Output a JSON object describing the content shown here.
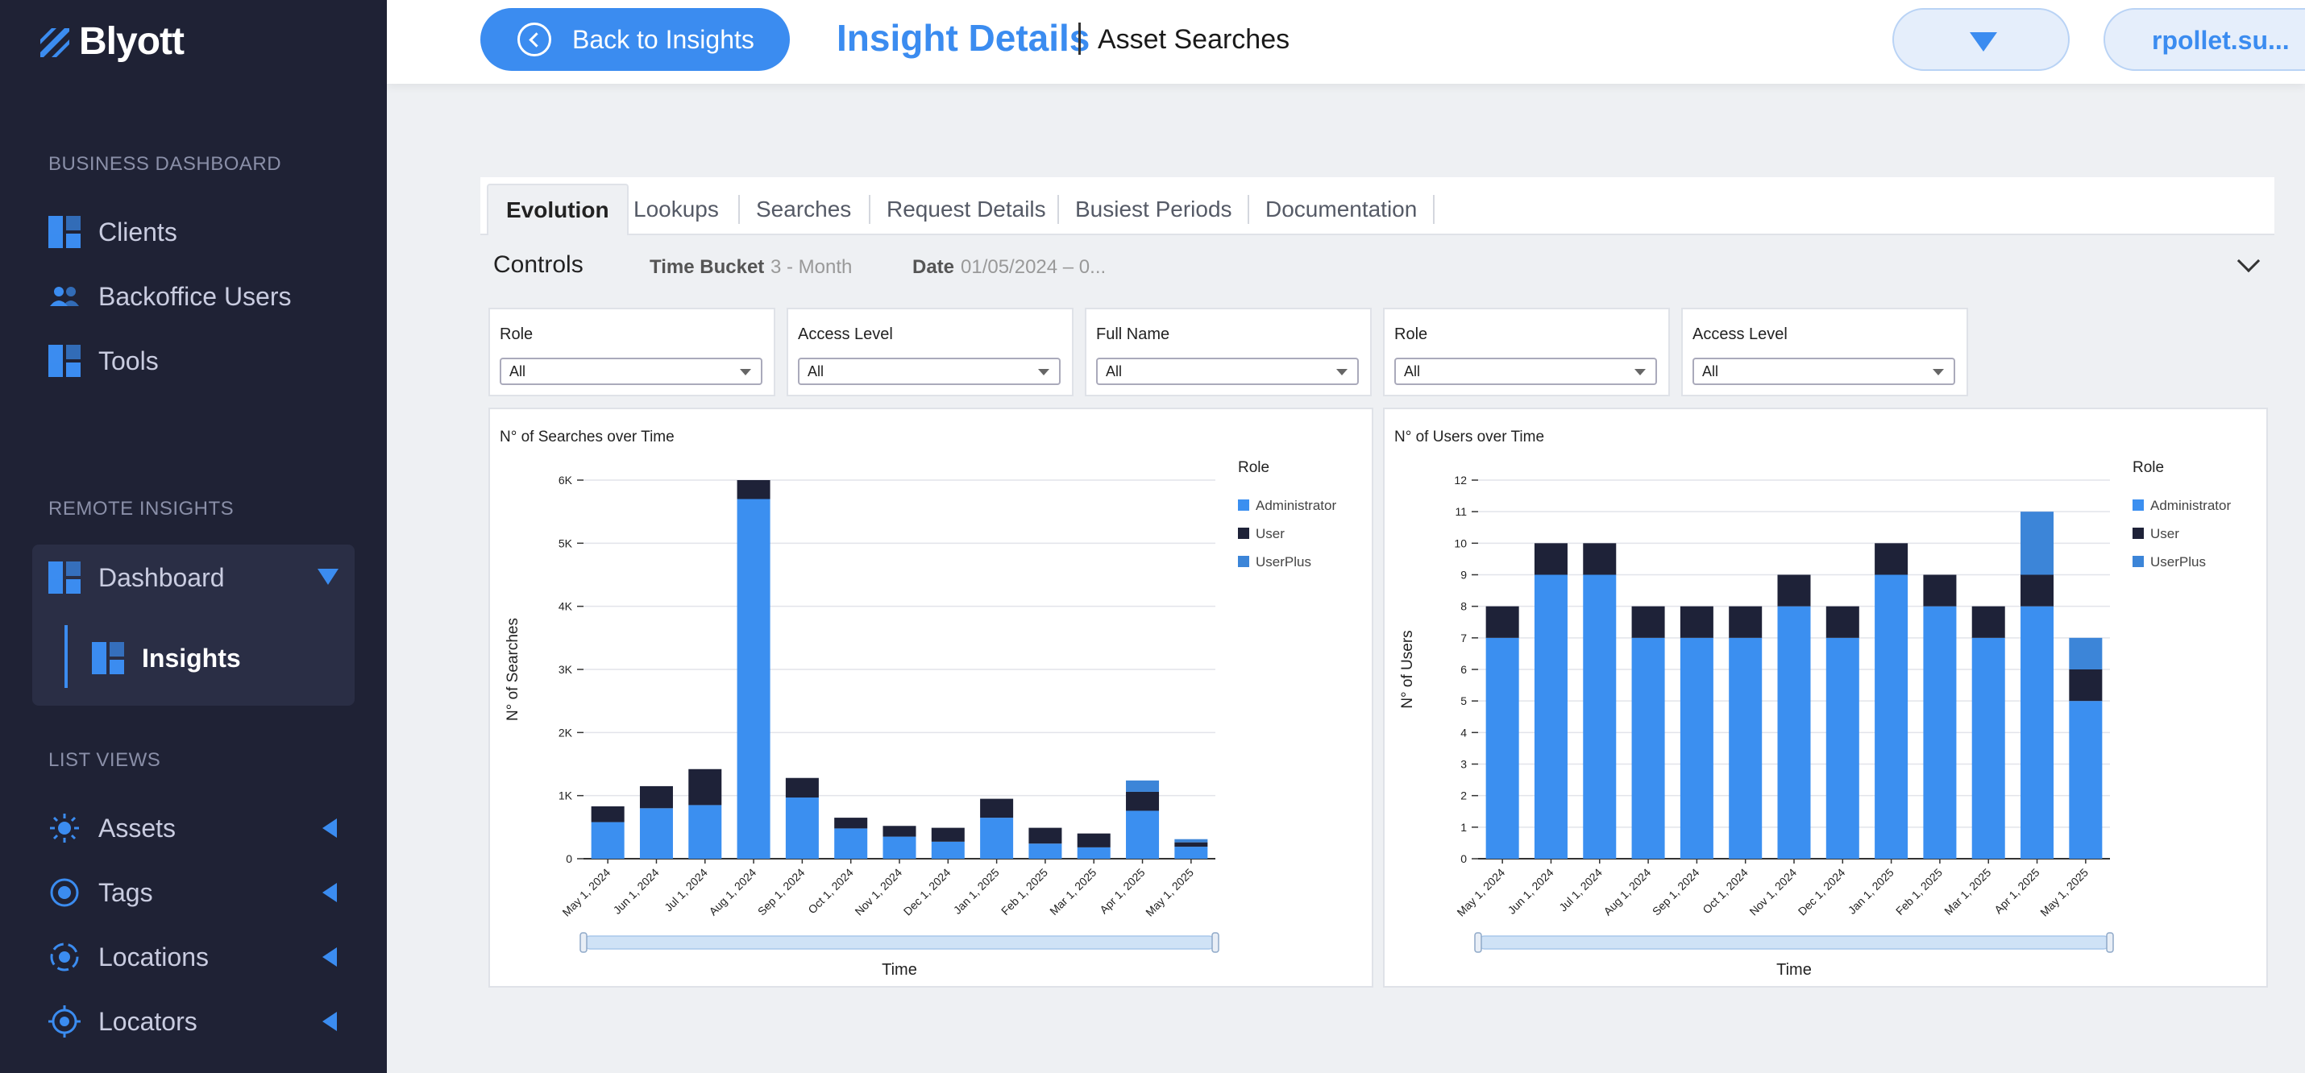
{
  "app": {
    "name": "Blyott"
  },
  "sidebar": {
    "sections": [
      {
        "title": "BUSINESS DASHBOARD",
        "items": [
          {
            "label": "Clients"
          },
          {
            "label": "Backoffice Users"
          },
          {
            "label": "Tools"
          }
        ]
      },
      {
        "title": "REMOTE INSIGHTS",
        "items": [
          {
            "label": "Dashboard"
          },
          {
            "label": "Insights"
          }
        ]
      },
      {
        "title": "LIST VIEWS",
        "items": [
          {
            "label": "Assets"
          },
          {
            "label": "Tags"
          },
          {
            "label": "Locations"
          },
          {
            "label": "Locators"
          }
        ]
      }
    ]
  },
  "header": {
    "back_label": "Back to Insights",
    "title": "Insight Details",
    "subtitle": "Asset Searches",
    "user": "rpollet.su..."
  },
  "tabs": [
    "Evolution",
    "Lookups",
    "Searches",
    "Request Details",
    "Busiest Periods",
    "Documentation"
  ],
  "controls": {
    "title": "Controls",
    "time_bucket_label": "Time Bucket",
    "time_bucket_value": "3 - Month",
    "date_label": "Date",
    "date_value": "01/05/2024 – 0..."
  },
  "filters": [
    {
      "label": "Role",
      "value": "All"
    },
    {
      "label": "Access Level",
      "value": "All"
    },
    {
      "label": "Full Name",
      "value": "All"
    },
    {
      "label": "Role",
      "value": "All"
    },
    {
      "label": "Access Level",
      "value": "All"
    }
  ],
  "colors": {
    "administrator": "#3b8ff0",
    "user": "#1e2238",
    "userplus": "#3c85d8",
    "accent": "#3b8cf0",
    "sidebar": "#1f2235"
  },
  "chart_data": [
    {
      "type": "bar",
      "stacked": true,
      "title": "N° of Searches over Time",
      "xlabel": "Time",
      "ylabel": "N° of Searches",
      "legend_title": "Role",
      "legend_position": "right",
      "ylim": [
        0,
        6000
      ],
      "yticks": [
        0,
        1000,
        2000,
        3000,
        4000,
        5000,
        6000
      ],
      "ytick_labels": [
        "0",
        "1K",
        "2K",
        "3K",
        "4K",
        "5K",
        "6K"
      ],
      "categories": [
        "May 1, 2024",
        "Jun 1, 2024",
        "Jul 1, 2024",
        "Aug 1, 2024",
        "Sep 1, 2024",
        "Oct 1, 2024",
        "Nov 1, 2024",
        "Dec 1, 2024",
        "Jan 1, 2025",
        "Feb 1, 2025",
        "Mar 1, 2025",
        "Apr 1, 2025",
        "May 1, 2025"
      ],
      "series": [
        {
          "name": "Administrator",
          "values": [
            580,
            800,
            850,
            5700,
            970,
            480,
            350,
            270,
            650,
            240,
            180,
            760,
            190
          ]
        },
        {
          "name": "User",
          "values": [
            250,
            350,
            570,
            300,
            310,
            170,
            170,
            220,
            300,
            250,
            220,
            300,
            70
          ]
        },
        {
          "name": "UserPlus",
          "values": [
            0,
            0,
            0,
            0,
            0,
            0,
            0,
            0,
            0,
            0,
            0,
            180,
            50
          ]
        }
      ]
    },
    {
      "type": "bar",
      "stacked": true,
      "title": "N° of Users over Time",
      "xlabel": "Time",
      "ylabel": "N° of Users",
      "legend_title": "Role",
      "legend_position": "right",
      "ylim": [
        0,
        12
      ],
      "yticks": [
        0,
        1,
        2,
        3,
        4,
        5,
        6,
        7,
        8,
        9,
        10,
        11,
        12
      ],
      "ytick_labels": [
        "0",
        "1",
        "2",
        "3",
        "4",
        "5",
        "6",
        "7",
        "8",
        "9",
        "10",
        "11",
        "12"
      ],
      "categories": [
        "May 1, 2024",
        "Jun 1, 2024",
        "Jul 1, 2024",
        "Aug 1, 2024",
        "Sep 1, 2024",
        "Oct 1, 2024",
        "Nov 1, 2024",
        "Dec 1, 2024",
        "Jan 1, 2025",
        "Feb 1, 2025",
        "Mar 1, 2025",
        "Apr 1, 2025",
        "May 1, 2025"
      ],
      "series": [
        {
          "name": "Administrator",
          "values": [
            7,
            9,
            9,
            7,
            7,
            7,
            8,
            7,
            9,
            8,
            7,
            8,
            5
          ]
        },
        {
          "name": "User",
          "values": [
            1,
            1,
            1,
            1,
            1,
            1,
            1,
            1,
            1,
            1,
            1,
            1,
            1
          ]
        },
        {
          "name": "UserPlus",
          "values": [
            0,
            0,
            0,
            0,
            0,
            0,
            0,
            0,
            0,
            0,
            0,
            2,
            1
          ]
        }
      ]
    }
  ]
}
